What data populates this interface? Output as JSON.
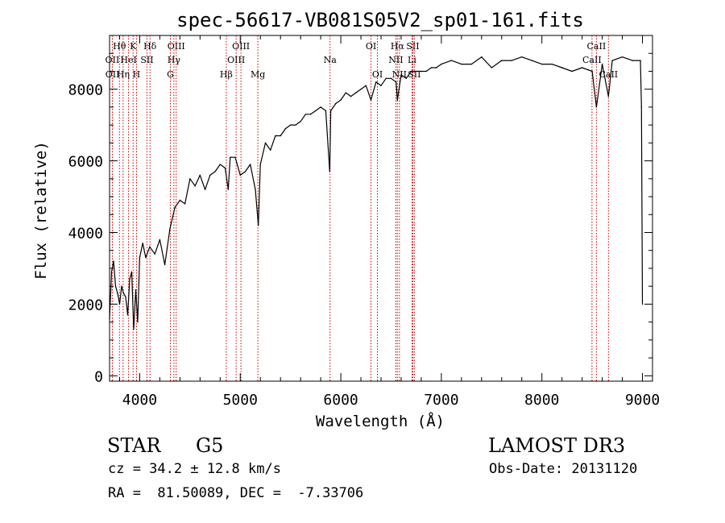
{
  "chart_data": {
    "type": "line",
    "title": "spec-56617-VB081S05V2_sp01-161.fits",
    "xlabel": "Wavelength (Å)",
    "ylabel": "Flux (relative)",
    "xlim": [
      3700,
      9100
    ],
    "ylim": [
      -150,
      9500
    ],
    "x_ticks": [
      4000,
      5000,
      6000,
      7000,
      8000,
      9000
    ],
    "y_ticks": [
      0,
      2000,
      4000,
      6000,
      8000
    ],
    "grid": false,
    "series": [
      {
        "x": [
          3700,
          3720,
          3740,
          3760,
          3780,
          3800,
          3820,
          3840,
          3860,
          3880,
          3900,
          3920,
          3940,
          3960,
          3980,
          4000,
          4030,
          4060,
          4100,
          4150,
          4200,
          4250,
          4300,
          4350,
          4400,
          4450,
          4500,
          4550,
          4600,
          4650,
          4700,
          4750,
          4800,
          4850,
          4880,
          4900,
          4950,
          5000,
          5050,
          5100,
          5150,
          5180,
          5200,
          5250,
          5300,
          5350,
          5400,
          5450,
          5500,
          5550,
          5600,
          5650,
          5700,
          5750,
          5800,
          5850,
          5890,
          5900,
          5950,
          6000,
          6050,
          6100,
          6150,
          6200,
          6250,
          6300,
          6350,
          6400,
          6450,
          6500,
          6550,
          6563,
          6600,
          6650,
          6700,
          6750,
          6800,
          6850,
          6900,
          6950,
          7000,
          7100,
          7200,
          7300,
          7400,
          7500,
          7600,
          7700,
          7800,
          7900,
          8000,
          8100,
          8200,
          8300,
          8400,
          8500,
          8542,
          8600,
          8662,
          8700,
          8800,
          8900,
          8980,
          8990,
          9000
        ],
        "y": [
          1600,
          2900,
          3200,
          2500,
          2300,
          2000,
          2500,
          2300,
          2200,
          1700,
          2700,
          2900,
          1300,
          2400,
          1500,
          3300,
          3700,
          3300,
          3600,
          3400,
          3800,
          3100,
          4100,
          4700,
          4900,
          4800,
          5500,
          5300,
          5600,
          5200,
          5600,
          5700,
          5900,
          5800,
          5200,
          6100,
          6100,
          5600,
          5700,
          5900,
          5200,
          4200,
          5900,
          6500,
          6300,
          6700,
          6700,
          6900,
          7000,
          7000,
          7100,
          7300,
          7300,
          7400,
          7500,
          7400,
          5700,
          7400,
          7600,
          7700,
          7900,
          7800,
          7900,
          8000,
          8100,
          7700,
          8200,
          8100,
          8300,
          8300,
          8200,
          7700,
          8400,
          8300,
          8500,
          8500,
          8500,
          8500,
          8600,
          8600,
          8700,
          8800,
          8700,
          8700,
          8900,
          8600,
          8800,
          8800,
          8900,
          8800,
          8700,
          8700,
          8600,
          8500,
          8600,
          8500,
          7500,
          8700,
          7800,
          8800,
          8900,
          8800,
          8800,
          7500,
          2000
        ]
      }
    ],
    "lines": [
      {
        "label": "Hθ",
        "x": 3798,
        "row": 0
      },
      {
        "label": "K",
        "x": 3934,
        "row": 0
      },
      {
        "label": "Hδ",
        "x": 4102,
        "row": 0
      },
      {
        "label": "OIII",
        "x": 4363,
        "row": 0
      },
      {
        "label": "OIII",
        "x": 5007,
        "row": 0
      },
      {
        "label": "OI",
        "x": 6300,
        "row": 0
      },
      {
        "label": "Hα",
        "x": 6563,
        "row": 0
      },
      {
        "label": "SII",
        "x": 6716,
        "row": 0
      },
      {
        "label": "CaII",
        "x": 8542,
        "row": 0
      },
      {
        "label": "OII",
        "x": 3727,
        "row": 1
      },
      {
        "label": "HeI",
        "x": 3889,
        "row": 1
      },
      {
        "label": "SII",
        "x": 4072,
        "row": 1
      },
      {
        "label": "Hγ",
        "x": 4340,
        "row": 1
      },
      {
        "label": "OIII",
        "x": 4959,
        "row": 1
      },
      {
        "label": "Na",
        "x": 5893,
        "row": 1
      },
      {
        "label": "NII",
        "x": 6548,
        "row": 1
      },
      {
        "label": "Li",
        "x": 6708,
        "row": 1
      },
      {
        "label": "CaII",
        "x": 8498,
        "row": 1
      },
      {
        "label": "OII",
        "x": 3729,
        "row": 2
      },
      {
        "label": "Hη",
        "x": 3835,
        "row": 2
      },
      {
        "label": "H",
        "x": 3968,
        "row": 2
      },
      {
        "label": "G",
        "x": 4305,
        "row": 2
      },
      {
        "label": "Hβ",
        "x": 4861,
        "row": 2
      },
      {
        "label": "Mg",
        "x": 5175,
        "row": 2
      },
      {
        "label": "OI",
        "x": 6364,
        "row": 2
      },
      {
        "label": "NII",
        "x": 6583,
        "row": 2
      },
      {
        "label": "SII",
        "x": 6731,
        "row": 2
      },
      {
        "label": "CaII",
        "x": 8662,
        "row": 2
      }
    ]
  },
  "info": {
    "object_type": "STAR",
    "subclass": "G5",
    "survey": "LAMOST DR3",
    "cz": "cz = 34.2 ± 12.8 km/s",
    "obs_date": "Obs-Date: 20131120",
    "coords": "RA =  81.50089, DEC =  -7.33706"
  },
  "colors": {
    "line": "#000000",
    "marker": "#cc0000"
  }
}
